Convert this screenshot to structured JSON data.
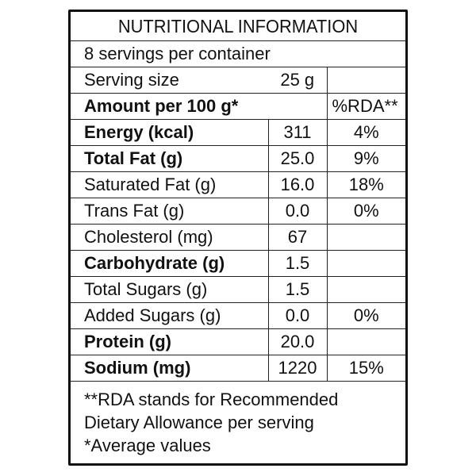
{
  "title": "NUTRITIONAL INFORMATION",
  "servings_per_container": "8 servings per container",
  "serving_size": {
    "label": "Serving size",
    "value": "25 g"
  },
  "header": {
    "label": "Amount per 100 g*",
    "rda": "%RDA**"
  },
  "rows": [
    {
      "label": "Energy (kcal)",
      "value": "311",
      "rda": "4%",
      "bold": true
    },
    {
      "label": "Total Fat (g)",
      "value": "25.0",
      "rda": "9%",
      "bold": true
    },
    {
      "label": "Saturated Fat (g)",
      "value": "16.0",
      "rda": "18%",
      "bold": false
    },
    {
      "label": "Trans Fat (g)",
      "value": "0.0",
      "rda": "0%",
      "bold": false
    },
    {
      "label": "Cholesterol (mg)",
      "value": "67",
      "rda": "",
      "bold": false
    },
    {
      "label": "Carbohydrate (g)",
      "value": "1.5",
      "rda": "",
      "bold": true
    },
    {
      "label": "Total Sugars (g)",
      "value": "1.5",
      "rda": "",
      "bold": false
    },
    {
      "label": "Added Sugars (g)",
      "value": "0.0",
      "rda": "0%",
      "bold": false
    },
    {
      "label": "Protein (g)",
      "value": "20.0",
      "rda": "",
      "bold": true
    },
    {
      "label": "Sodium (mg)",
      "value": "1220",
      "rda": "15%",
      "bold": true
    }
  ],
  "footnotes": [
    "**RDA stands for Recommended",
    "Dietary Allowance per serving",
    "*Average values"
  ]
}
